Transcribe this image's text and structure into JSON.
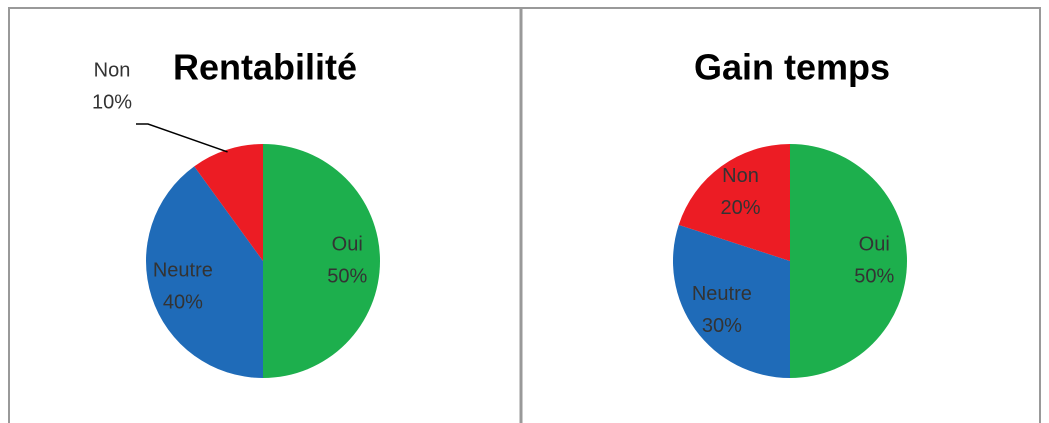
{
  "chart_data": [
    {
      "type": "pie",
      "title": "Rentabilité",
      "categories": [
        "Oui",
        "Neutre",
        "Non"
      ],
      "values": [
        50,
        40,
        10
      ],
      "value_labels": [
        "50%",
        "40%",
        "10%"
      ],
      "colors": [
        "#1daf4d",
        "#1f6bb8",
        "#ec1c24"
      ]
    },
    {
      "type": "pie",
      "title": "Gain temps",
      "categories": [
        "Oui",
        "Neutre",
        "Non"
      ],
      "values": [
        50,
        30,
        20
      ],
      "value_labels": [
        "50%",
        "30%",
        "20%"
      ],
      "colors": [
        "#1daf4d",
        "#1f6bb8",
        "#ec1c24"
      ]
    }
  ]
}
